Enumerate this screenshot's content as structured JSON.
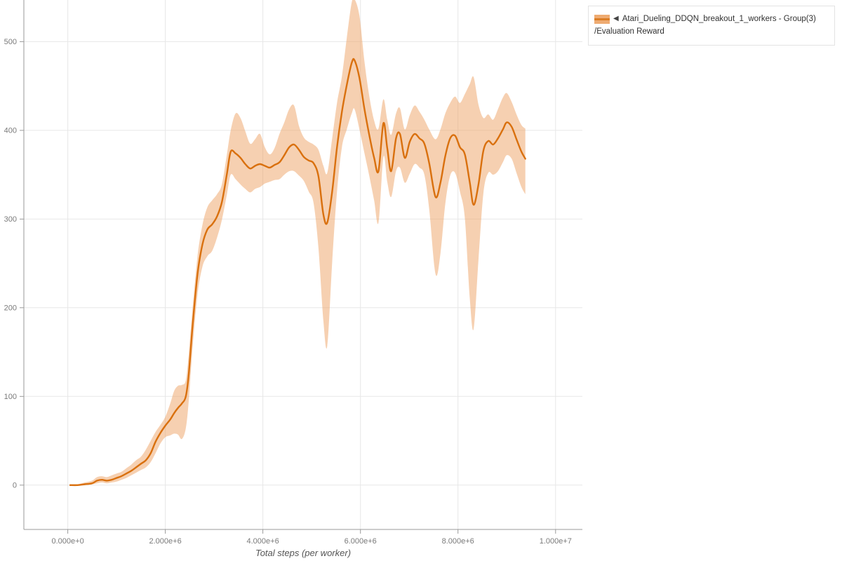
{
  "legend": {
    "collapse_icon": "◀",
    "label_line1": "Atari_Dueling_DDQN_breakout_1_workers - Group(3)",
    "label_line2": "/Evaluation Reward",
    "border_color": "#e3e3e3",
    "text_color": "#303030"
  },
  "colors": {
    "background": "#ffffff",
    "grid": "#e7e7e7",
    "axis": "#9a9a9a",
    "tick_label": "#7a7a7a",
    "axis_title": "#555555"
  },
  "chart_data": {
    "type": "line",
    "title": "",
    "xlabel": "Total steps (per worker)",
    "ylabel": "",
    "grid": true,
    "legend_position": "top-right-outside",
    "x_ticks": {
      "values": [
        0,
        2000000,
        4000000,
        6000000,
        8000000,
        10000000
      ],
      "labels": [
        "0.000e+0",
        "2.000e+6",
        "4.000e+6",
        "6.000e+6",
        "8.000e+6",
        "1.000e+7"
      ]
    },
    "y_ticks": {
      "values": [
        0,
        100,
        200,
        300,
        400,
        500
      ],
      "labels": [
        "0",
        "100",
        "200",
        "300",
        "400",
        "500"
      ]
    },
    "xlim": [
      -900000,
      10550000
    ],
    "ylim": [
      -50,
      547
    ],
    "series": [
      {
        "name": "Atari_Dueling_DDQN_breakout_1_workers - Group(3)/Evaluation Reward",
        "line_color": "#d9700e",
        "band_color": "#eda263",
        "band_opacity": 0.5,
        "points_format": [
          "x",
          "mean",
          "lower",
          "upper"
        ],
        "points": [
          [
            50000,
            0,
            0,
            1
          ],
          [
            200000,
            0,
            0,
            1
          ],
          [
            350000,
            1,
            0,
            3
          ],
          [
            500000,
            2,
            1,
            5
          ],
          [
            600000,
            5,
            2,
            9
          ],
          [
            700000,
            6,
            3,
            10
          ],
          [
            800000,
            5,
            2,
            9
          ],
          [
            900000,
            6,
            3,
            11
          ],
          [
            1000000,
            8,
            4,
            13
          ],
          [
            1100000,
            10,
            6,
            15
          ],
          [
            1200000,
            13,
            8,
            19
          ],
          [
            1300000,
            16,
            11,
            23
          ],
          [
            1400000,
            20,
            14,
            28
          ],
          [
            1500000,
            24,
            17,
            32
          ],
          [
            1600000,
            28,
            20,
            40
          ],
          [
            1700000,
            36,
            26,
            50
          ],
          [
            1800000,
            49,
            36,
            60
          ],
          [
            1900000,
            59,
            47,
            68
          ],
          [
            2000000,
            67,
            54,
            77
          ],
          [
            2100000,
            74,
            56,
            92
          ],
          [
            2180000,
            81,
            58,
            106
          ],
          [
            2260000,
            87,
            57,
            112
          ],
          [
            2340000,
            92,
            52,
            113
          ],
          [
            2420000,
            100,
            64,
            118
          ],
          [
            2480000,
            125,
            95,
            148
          ],
          [
            2560000,
            180,
            155,
            200
          ],
          [
            2660000,
            238,
            215,
            258
          ],
          [
            2760000,
            271,
            246,
            293
          ],
          [
            2860000,
            288,
            258,
            313
          ],
          [
            2960000,
            294,
            264,
            321
          ],
          [
            3060000,
            303,
            279,
            328
          ],
          [
            3160000,
            319,
            299,
            339
          ],
          [
            3260000,
            350,
            327,
            372
          ],
          [
            3340000,
            376,
            350,
            400
          ],
          [
            3440000,
            374,
            345,
            419
          ],
          [
            3540000,
            369,
            339,
            414
          ],
          [
            3640000,
            362,
            334,
            399
          ],
          [
            3740000,
            357,
            330,
            385
          ],
          [
            3840000,
            360,
            334,
            390
          ],
          [
            3940000,
            362,
            336,
            396
          ],
          [
            4040000,
            360,
            340,
            381
          ],
          [
            4140000,
            358,
            342,
            373
          ],
          [
            4240000,
            361,
            344,
            380
          ],
          [
            4340000,
            364,
            345,
            396
          ],
          [
            4440000,
            372,
            350,
            409
          ],
          [
            4540000,
            381,
            354,
            424
          ],
          [
            4640000,
            384,
            354,
            428
          ],
          [
            4740000,
            378,
            349,
            405
          ],
          [
            4840000,
            370,
            343,
            392
          ],
          [
            4940000,
            366,
            331,
            387
          ],
          [
            5040000,
            363,
            318,
            384
          ],
          [
            5140000,
            348,
            267,
            378
          ],
          [
            5240000,
            305,
            185,
            360
          ],
          [
            5320000,
            296,
            157,
            352
          ],
          [
            5420000,
            331,
            251,
            391
          ],
          [
            5520000,
            381,
            331,
            431
          ],
          [
            5620000,
            421,
            381,
            461
          ],
          [
            5720000,
            451,
            401,
            504
          ],
          [
            5820000,
            476,
            419,
            544
          ],
          [
            5880000,
            479,
            424,
            548
          ],
          [
            5980000,
            459,
            401,
            529
          ],
          [
            6080000,
            425,
            375,
            479
          ],
          [
            6180000,
            395,
            349,
            439
          ],
          [
            6280000,
            369,
            321,
            411
          ],
          [
            6370000,
            354,
            296,
            402
          ],
          [
            6470000,
            408,
            370,
            435
          ],
          [
            6550000,
            380,
            342,
            412
          ],
          [
            6630000,
            354,
            325,
            395
          ],
          [
            6730000,
            391,
            354,
            419
          ],
          [
            6810000,
            396,
            358,
            425
          ],
          [
            6910000,
            369,
            341,
            401
          ],
          [
            7010000,
            387,
            351,
            417
          ],
          [
            7110000,
            396,
            362,
            428
          ],
          [
            7210000,
            391,
            358,
            421
          ],
          [
            7310000,
            385,
            350,
            412
          ],
          [
            7410000,
            363,
            311,
            401
          ],
          [
            7540000,
            325,
            238,
            390
          ],
          [
            7640000,
            341,
            261,
            401
          ],
          [
            7740000,
            371,
            317,
            419
          ],
          [
            7840000,
            391,
            349,
            431
          ],
          [
            7940000,
            394,
            352,
            438
          ],
          [
            8040000,
            381,
            331,
            431
          ],
          [
            8140000,
            373,
            301,
            441
          ],
          [
            8240000,
            342,
            212,
            452
          ],
          [
            8320000,
            316,
            176,
            460
          ],
          [
            8420000,
            339,
            254,
            429
          ],
          [
            8520000,
            377,
            329,
            414
          ],
          [
            8620000,
            388,
            352,
            418
          ],
          [
            8720000,
            384,
            350,
            412
          ],
          [
            8820000,
            391,
            354,
            424
          ],
          [
            8920000,
            401,
            364,
            437
          ],
          [
            9000000,
            409,
            372,
            442
          ],
          [
            9100000,
            404,
            368,
            432
          ],
          [
            9200000,
            390,
            352,
            418
          ],
          [
            9300000,
            376,
            336,
            406
          ],
          [
            9380000,
            368,
            328,
            402
          ]
        ]
      }
    ]
  }
}
